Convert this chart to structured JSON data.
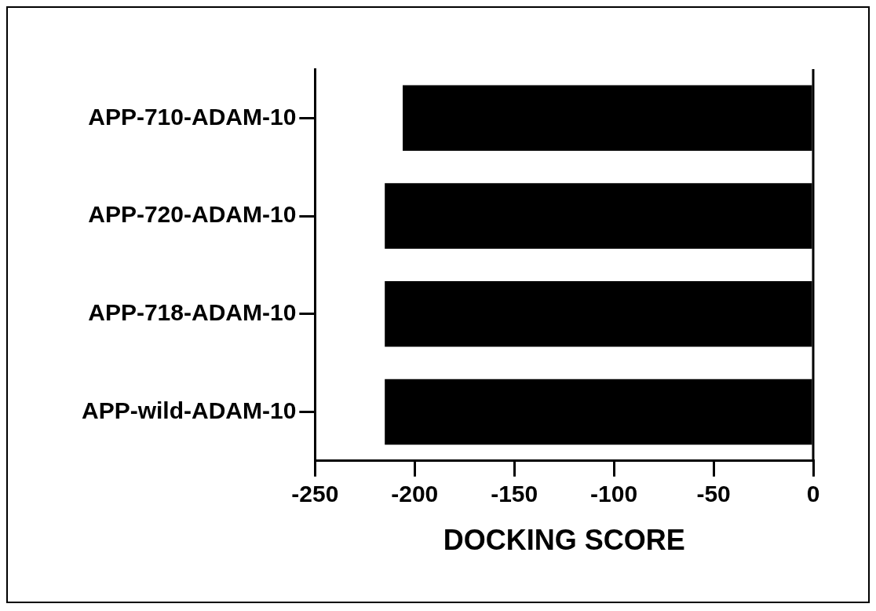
{
  "chart_data": {
    "type": "bar",
    "orientation": "horizontal",
    "categories": [
      "APP-710-ADAM-10",
      "APP-720-ADAM-10",
      "APP-718-ADAM-10",
      "APP-wild-ADAM-10"
    ],
    "values": [
      -206,
      -215,
      -215,
      -215
    ],
    "color": "#000000",
    "xlabel": "DOCKING SCORE",
    "xlim": [
      -250,
      0
    ],
    "xticks": [
      -250,
      -200,
      -150,
      -100,
      -50,
      0
    ],
    "grid": false,
    "ref_lines": [
      {
        "axis": "x",
        "value": 0,
        "color": "#000000"
      }
    ]
  }
}
